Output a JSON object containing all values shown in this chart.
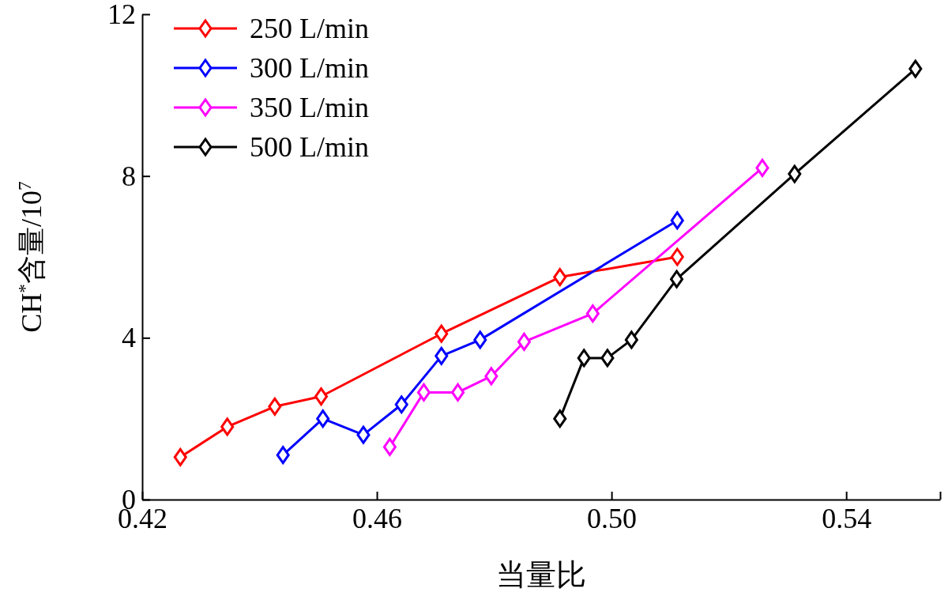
{
  "chart_data": {
    "type": "line",
    "xlabel": "当量比",
    "ylabel": "CH$^{*}$含量/10$^{7}$",
    "xlim": [
      0.42,
      0.556
    ],
    "xticks": [
      0.42,
      0.46,
      {
        "value": 0.5,
        "label": "0.50"
      },
      0.54,
      {
        "value": 0.556,
        "label": null
      }
    ],
    "ylim": [
      0,
      12
    ],
    "yticks": [
      0,
      4,
      8,
      12
    ],
    "marker": "diamond",
    "line_style": "solid",
    "grid": false,
    "legend": "top left",
    "series": [
      {
        "name": "250 L/min",
        "color": "#ff0000",
        "x": [
          0.4265,
          0.4345,
          0.4426,
          0.4505,
          0.471,
          0.4912,
          0.5112
        ],
        "values": [
          1.05,
          1.8,
          2.3,
          2.55,
          4.1,
          5.5,
          6.0
        ]
      },
      {
        "name": "300 L/min",
        "color": "#0000ff",
        "x": [
          0.444,
          0.4508,
          0.4577,
          0.4642,
          0.471,
          0.4776,
          0.5112
        ],
        "values": [
          1.1,
          2.0,
          1.6,
          2.35,
          3.55,
          3.95,
          6.9
        ]
      },
      {
        "name": "350 L/min",
        "color": "#ff00ff",
        "x": [
          0.4622,
          0.468,
          0.4738,
          0.4795,
          0.4851,
          0.4968,
          0.5257
        ],
        "values": [
          1.3,
          2.65,
          2.65,
          3.05,
          3.9,
          4.6,
          8.2
        ]
      },
      {
        "name": "500 L/min",
        "color": "#000000",
        "x": [
          0.4912,
          0.4953,
          0.4993,
          0.5034,
          0.5111,
          0.5312,
          0.5518
        ],
        "values": [
          2.0,
          3.5,
          3.5,
          3.95,
          5.45,
          8.05,
          10.65
        ]
      }
    ]
  }
}
